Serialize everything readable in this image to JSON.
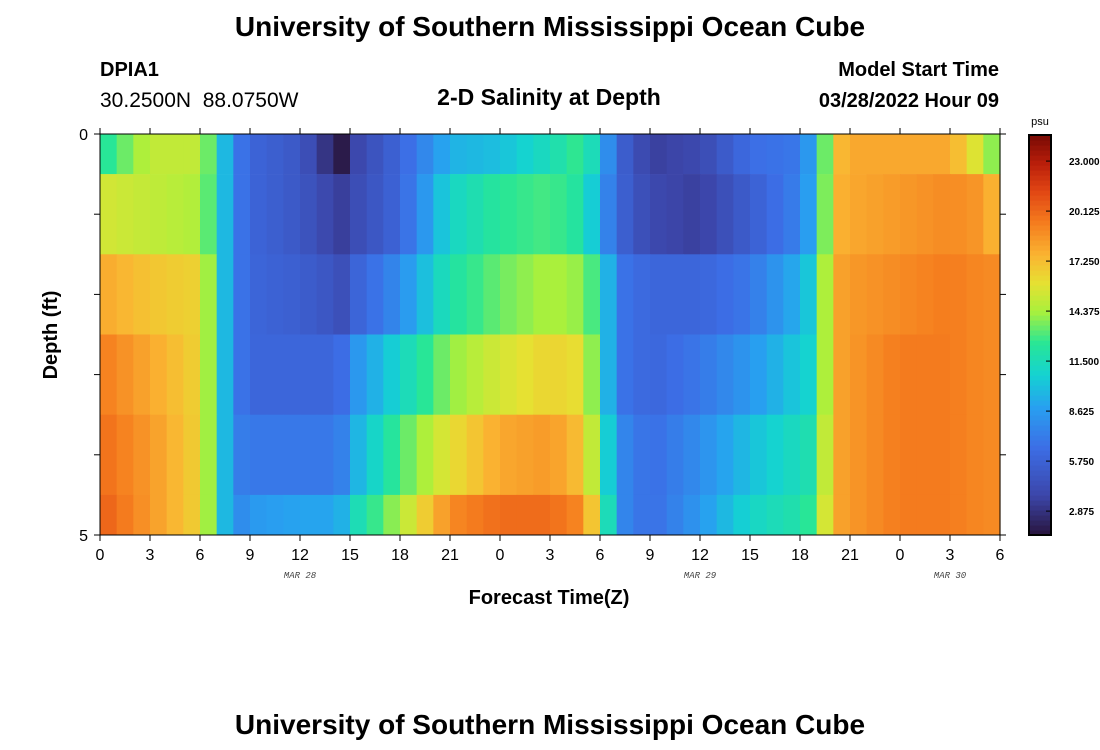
{
  "page": {
    "title": "University of Southern Mississippi Ocean Cube",
    "station_id": "DPIA1",
    "station_coords": "30.2500N  88.0750W",
    "chart_title": "2-D Salinity at Depth",
    "model_start_label": "Model Start Time",
    "model_start_value": "03/28/2022 Hour 09",
    "footer_title": "University of Southern Mississippi Ocean Cube"
  },
  "chart_data": {
    "type": "heatmap",
    "title": "2-D Salinity at Depth",
    "xlabel": "Forecast Time(Z)",
    "ylabel": "Depth (ft)",
    "x_tick_labels": [
      "0",
      "3",
      "6",
      "9",
      "12",
      "15",
      "18",
      "21",
      "0",
      "3",
      "6",
      "9",
      "12",
      "15",
      "18",
      "21",
      "0",
      "3",
      "6"
    ],
    "x_hours": [
      0,
      3,
      6,
      9,
      12,
      15,
      18,
      21,
      24,
      27,
      30,
      33,
      36,
      39,
      42,
      45,
      48,
      51,
      54
    ],
    "xlim": [
      0,
      54
    ],
    "date_labels": [
      {
        "label": "MAR 28",
        "hour": 12
      },
      {
        "label": "MAR 29",
        "hour": 36
      },
      {
        "label": "MAR 30",
        "hour": 51
      }
    ],
    "y_tick_labels": [
      "0",
      "5"
    ],
    "ylim": [
      0,
      5
    ],
    "depth_layers": [
      0,
      1,
      2,
      3,
      4,
      5
    ],
    "colorbar": {
      "unit": "psu",
      "min": 1.5,
      "max": 24.5,
      "tick_labels": [
        "23.000",
        "20.125",
        "17.250",
        "14.375",
        "11.500",
        "8.625",
        "5.750",
        "2.875"
      ],
      "tick_values": [
        23.0,
        20.125,
        17.25,
        14.375,
        11.5,
        8.625,
        5.75,
        2.875
      ]
    },
    "hours": [
      0,
      3,
      6,
      7,
      8,
      9,
      12,
      13.5,
      14.5,
      15,
      18,
      21,
      24,
      27,
      29,
      30,
      31,
      33,
      36,
      39,
      42,
      43,
      44,
      45,
      48,
      51,
      53,
      54
    ],
    "salinity_rows": [
      {
        "depth": [
          0,
          0.5
        ],
        "values": [
          12,
          15,
          15,
          12,
          7.5,
          6,
          5,
          3,
          1.8,
          3.5,
          6,
          9.5,
          10,
          11.5,
          13,
          10,
          6,
          3.5,
          4,
          6.5,
          7,
          10,
          17,
          18,
          18,
          18,
          15,
          13
        ]
      },
      {
        "depth": [
          0.5,
          1.5
        ],
        "values": [
          15.5,
          15,
          14.5,
          12,
          7.5,
          6,
          5,
          4,
          3.5,
          4,
          6,
          11,
          12.5,
          13,
          12,
          9,
          6,
          4,
          3.5,
          5.5,
          7.5,
          10,
          17.5,
          18,
          18.5,
          19,
          18.5,
          17
        ]
      },
      {
        "depth": [
          1.5,
          2.5
        ],
        "values": [
          18,
          17,
          16.5,
          12,
          7.5,
          6,
          5.5,
          5,
          4.5,
          5.5,
          8,
          12,
          13.5,
          14.5,
          14,
          12,
          7,
          6,
          6,
          7,
          9.5,
          11,
          18,
          18.5,
          19,
          19.5,
          19,
          19
        ]
      },
      {
        "depth": [
          2.5,
          3.5
        ],
        "values": [
          19.5,
          18,
          16.5,
          12,
          7.5,
          6,
          6,
          6,
          6.5,
          8,
          11,
          14,
          15.5,
          16.5,
          16,
          12,
          7,
          6,
          7,
          8.5,
          10.5,
          11,
          18,
          18.5,
          19.5,
          19.5,
          19,
          19
        ]
      },
      {
        "depth": [
          3.5,
          4.5
        ],
        "values": [
          20,
          18.5,
          16.5,
          12,
          7.5,
          7,
          7,
          7,
          7.5,
          9,
          13,
          16,
          18,
          18.5,
          17,
          13,
          8,
          6.5,
          8,
          10,
          11.5,
          12,
          18,
          18.5,
          19.5,
          19.5,
          19,
          19
        ]
      },
      {
        "depth": [
          4.5,
          5.0
        ],
        "values": [
          20.5,
          18.5,
          16.5,
          12,
          7.5,
          8.5,
          9,
          9,
          9.5,
          11,
          14.5,
          19,
          20,
          20,
          19,
          15,
          8,
          6.5,
          8.5,
          11,
          12,
          13,
          18,
          18.5,
          19.5,
          19.5,
          19,
          19
        ]
      }
    ]
  }
}
